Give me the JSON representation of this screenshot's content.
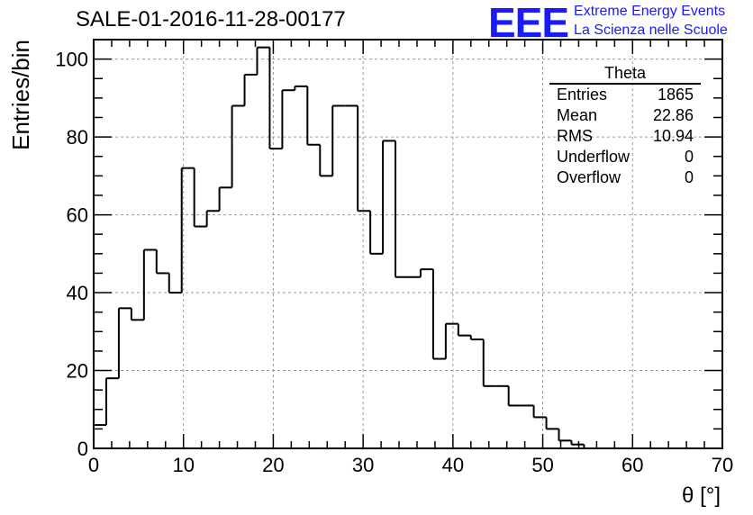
{
  "header": {
    "run_title": "SALE-01-2016-11-28-00177",
    "logo_mark": "EEE",
    "logo_line1": "Extreme Energy Events",
    "logo_line2": "La Scienza nelle Scuole"
  },
  "stats_box": {
    "title": "Theta",
    "rows": [
      {
        "label": "Entries",
        "value": "1865"
      },
      {
        "label": "Mean",
        "value": "22.86"
      },
      {
        "label": "RMS",
        "value": "10.94"
      },
      {
        "label": "Underflow",
        "value": "0"
      },
      {
        "label": "Overflow",
        "value": "0"
      }
    ]
  },
  "chart_data": {
    "type": "histogram",
    "xlabel": "θ [°]",
    "ylabel": "Entries/bin",
    "xlim": [
      0,
      70
    ],
    "ylim": [
      0,
      105
    ],
    "grid": true,
    "bin_width": 1.4,
    "bin_edges_start": 0,
    "values": [
      6,
      18,
      36,
      33,
      51,
      45,
      40,
      72,
      57,
      61,
      67,
      88,
      96,
      103,
      77,
      92,
      93,
      78,
      70,
      88,
      88,
      61,
      50,
      79,
      44,
      44,
      46,
      23,
      32,
      29,
      28,
      16,
      16,
      11,
      11,
      8,
      5,
      2,
      1,
      0
    ],
    "x_ticks": [
      0,
      10,
      20,
      30,
      40,
      50,
      60,
      70
    ],
    "y_ticks": [
      0,
      20,
      40,
      60,
      80,
      100
    ],
    "line_color": "#000000",
    "grid_color": "#9a9a9a"
  }
}
